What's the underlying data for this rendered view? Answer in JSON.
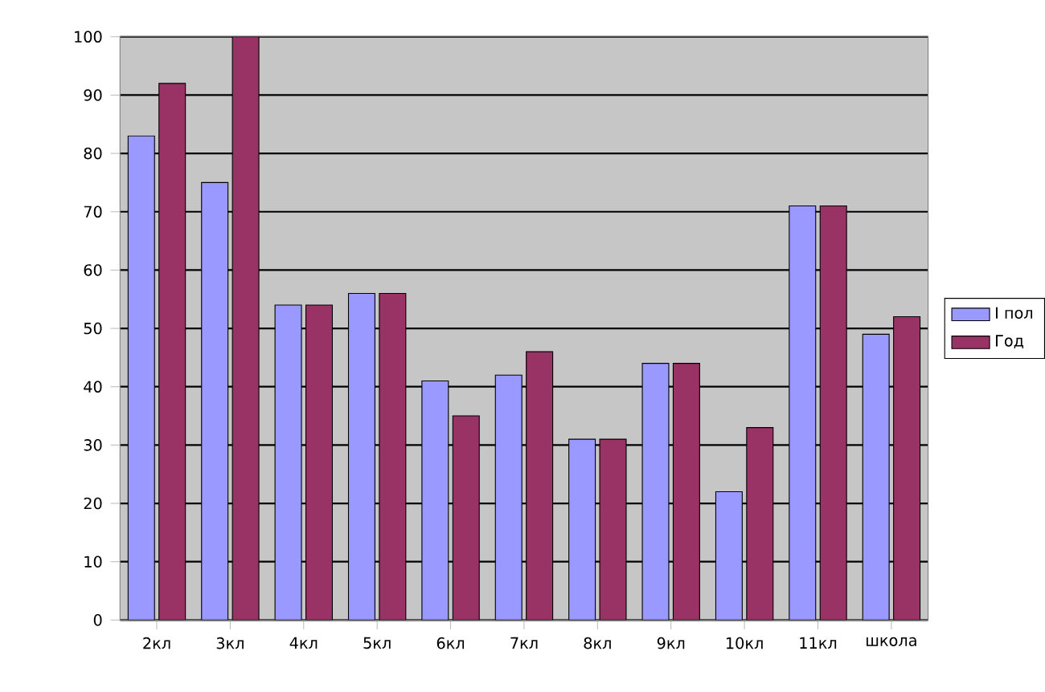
{
  "chart_data": {
    "type": "bar",
    "categories": [
      "2кл",
      "3кл",
      "4кл",
      "5кл",
      "6кл",
      "7кл",
      "8кл",
      "9кл",
      "10кл",
      "11кл",
      "школа"
    ],
    "series": [
      {
        "name": "I пол",
        "color": "#9999ff",
        "values": [
          83,
          75,
          54,
          56,
          41,
          42,
          31,
          44,
          22,
          71,
          49
        ]
      },
      {
        "name": "Год",
        "color": "#993366",
        "values": [
          92,
          100,
          54,
          56,
          35,
          46,
          31,
          44,
          33,
          71,
          52
        ]
      }
    ],
    "ylim": [
      0,
      100
    ],
    "yticks": [
      0,
      10,
      20,
      30,
      40,
      50,
      60,
      70,
      80,
      90,
      100
    ],
    "grid": "y",
    "legend": "right"
  }
}
